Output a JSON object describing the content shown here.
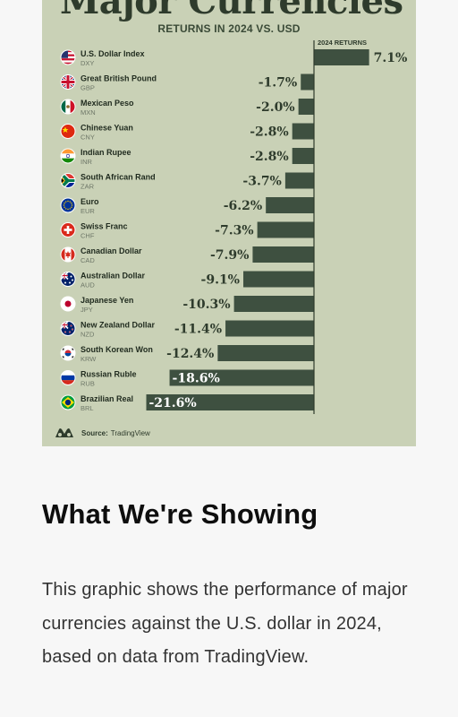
{
  "graphic": {
    "title": "Major Currencies",
    "subtitle": "RETURNS IN 2024 VS. USD",
    "source_label": "Source:",
    "source_name": "TradingView"
  },
  "chart_data": {
    "type": "bar",
    "orientation": "horizontal",
    "column_header": "2024 RETURNS",
    "unit": "%",
    "categories": [
      {
        "name": "U.S. Dollar Index",
        "code": "DXY",
        "flag": "us-flag"
      },
      {
        "name": "Great British Pound",
        "code": "GBP",
        "flag": "uk-flag"
      },
      {
        "name": "Mexican Peso",
        "code": "MXN",
        "flag": "mexico-flag"
      },
      {
        "name": "Chinese Yuan",
        "code": "CNY",
        "flag": "china-flag"
      },
      {
        "name": "Indian Rupee",
        "code": "INR",
        "flag": "india-flag"
      },
      {
        "name": "South African Rand",
        "code": "ZAR",
        "flag": "south-africa-flag"
      },
      {
        "name": "Euro",
        "code": "EUR",
        "flag": "eu-flag"
      },
      {
        "name": "Swiss Franc",
        "code": "CHF",
        "flag": "switzerland-flag"
      },
      {
        "name": "Canadian Dollar",
        "code": "CAD",
        "flag": "canada-flag"
      },
      {
        "name": "Australian Dollar",
        "code": "AUD",
        "flag": "australia-flag"
      },
      {
        "name": "Japanese Yen",
        "code": "JPY",
        "flag": "japan-flag"
      },
      {
        "name": "New Zealand Dollar",
        "code": "NZD",
        "flag": "new-zealand-flag"
      },
      {
        "name": "South Korean Won",
        "code": "KRW",
        "flag": "south-korea-flag"
      },
      {
        "name": "Russian Ruble",
        "code": "RUB",
        "flag": "russia-flag"
      },
      {
        "name": "Brazilian Real",
        "code": "BRL",
        "flag": "brazil-flag"
      }
    ],
    "values": [
      7.1,
      -1.7,
      -2.0,
      -2.8,
      -2.8,
      -3.7,
      -6.2,
      -7.3,
      -7.9,
      -9.1,
      -10.3,
      -11.4,
      -12.4,
      -18.6,
      -21.6
    ],
    "value_labels": [
      "7.1%",
      "-1.7%",
      "-2.0%",
      "-2.8%",
      "-2.8%",
      "-3.7%",
      "-6.2%",
      "-7.3%",
      "-7.9%",
      "-9.1%",
      "-10.3%",
      "-11.4%",
      "-12.4%",
      "-18.6%",
      "-21.6%"
    ],
    "label_inside_from": -15,
    "bar_color": "#3e5040",
    "background_color": "#c9d1b6"
  },
  "article": {
    "heading": "What We're Showing",
    "body": "This graphic shows the performance of major currencies against the U.S. dollar in 2024, based on data from TradingView."
  }
}
